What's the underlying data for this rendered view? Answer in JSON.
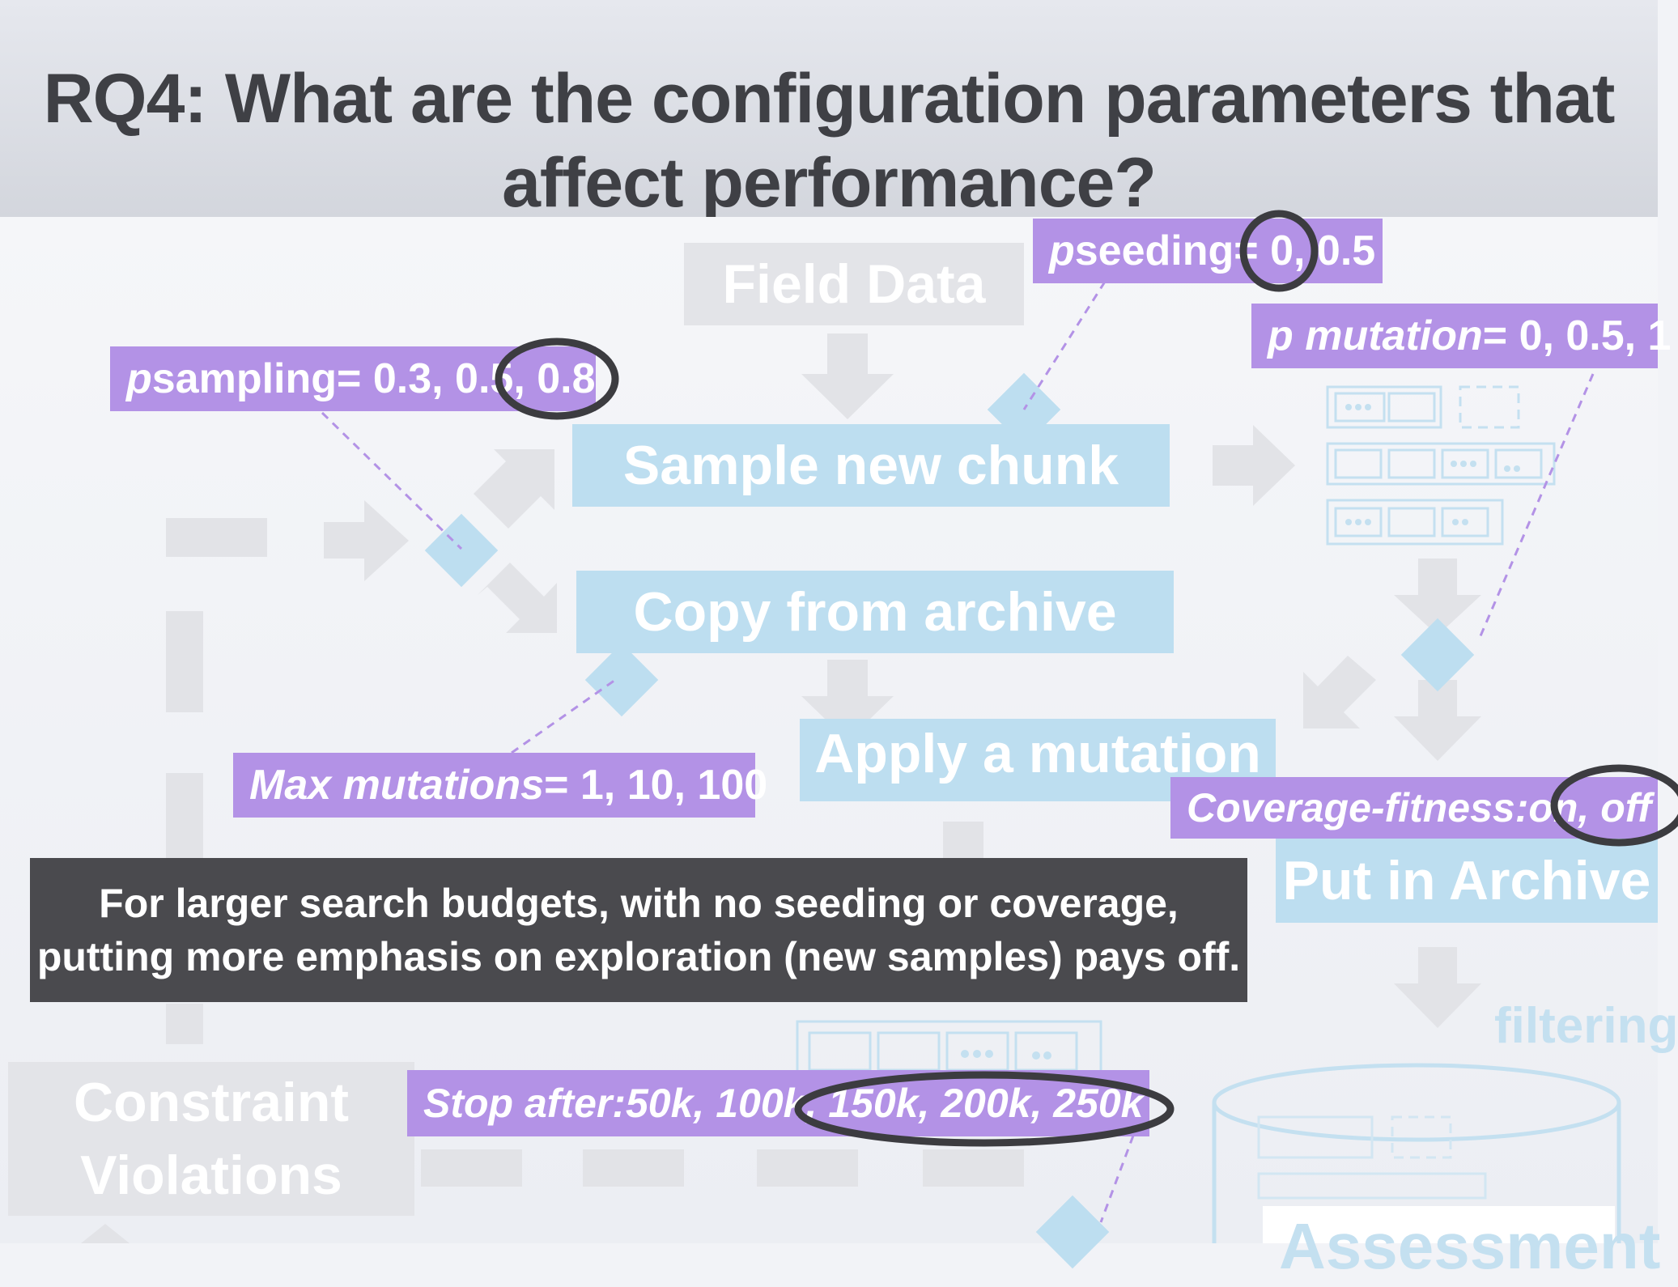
{
  "slide": {
    "title_line1": "RQ4: What are the configuration parameters that",
    "title_line2": "affect performance?"
  },
  "boxes": {
    "field_data": "Field Data",
    "sample_new_chunk": "Sample new chunk",
    "copy_from_archive": "Copy from archive",
    "apply_mutation": "Apply a mutation",
    "put_in_archive": "Put in Archive",
    "constraint_line1": "Constraint",
    "constraint_line2": "Violations",
    "filtering": "filtering",
    "assessment": "Assessment"
  },
  "params": {
    "seeding": {
      "name": "p",
      "param": " seeding",
      "values": " = 0, 0.5"
    },
    "mutation": {
      "name": "p mutation",
      "values": " = 0, 0.5, 1"
    },
    "sampling": {
      "name": "p",
      "param": " sampling",
      "values": " = 0.3, 0.5, 0.8"
    },
    "max_mutations": {
      "name": "Max mutations",
      "values": " = 1, 10, 100"
    },
    "coverage": {
      "name": "Coverage-fitness:",
      "values": " on, off"
    },
    "stop_after": {
      "name": "Stop after:",
      "values": " 50k, 100k, 150k, 200k, 250k"
    }
  },
  "note": {
    "line1": "For larger search budgets, with no seeding or coverage,",
    "line2": "putting more emphasis on exploration (new samples) pays off."
  },
  "colors": {
    "param_label": "#b392e6",
    "process_box": "#bddef0",
    "highlight_ring": "#3c3c40",
    "note_bg": "#4a4a4e"
  }
}
